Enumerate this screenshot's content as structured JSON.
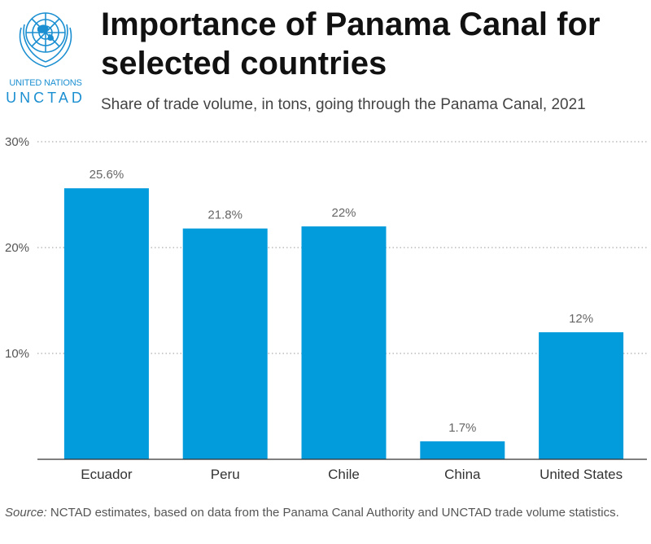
{
  "header": {
    "title": "Importance of Panama Canal for selected countries",
    "subtitle": "Share of trade volume, in tons, going through the Panama Canal, 2021"
  },
  "logo": {
    "line1": "UNITED NATIONS",
    "line2": "UNCTAD",
    "icon": "un-emblem-icon",
    "color": "#1b8fd1"
  },
  "footer": {
    "source_label": "Source:",
    "source_text": " NCTAD estimates, based on data from the Panama Canal Authority and UNCTAD trade volume statistics."
  },
  "chart_data": {
    "type": "bar",
    "title": "Importance of Panama Canal for selected countries",
    "subtitle": "Share of trade volume, in tons, going through the Panama Canal, 2021",
    "categories": [
      "Ecuador",
      "Peru",
      "Chile",
      "China",
      "United States"
    ],
    "values": [
      25.6,
      21.8,
      22,
      1.7,
      12
    ],
    "data_labels": [
      "25.6%",
      "21.8%",
      "22%",
      "1.7%",
      "12%"
    ],
    "ylim": [
      0,
      30
    ],
    "yticks": [
      10,
      20,
      30
    ],
    "ytick_labels": [
      "10%",
      "20%",
      "30%"
    ],
    "xlabel": "",
    "ylabel": "",
    "grid": true,
    "bar_color": "#029bdb"
  }
}
